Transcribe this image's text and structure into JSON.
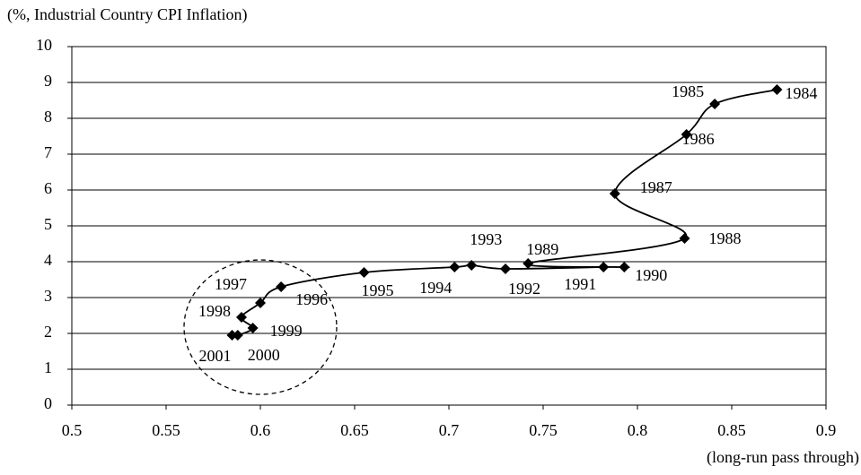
{
  "chart_data": {
    "type": "line",
    "y_label": "(%, Industrial Country CPI Inflation)",
    "x_label": "(long-run pass through)",
    "x": [
      0.874,
      0.841,
      0.826,
      0.788,
      0.825,
      0.742,
      0.793,
      0.782,
      0.73,
      0.712,
      0.703,
      0.655,
      0.611,
      0.6,
      0.59,
      0.596,
      0.588,
      0.585
    ],
    "values": [
      8.8,
      8.4,
      7.55,
      5.9,
      4.65,
      3.95,
      3.85,
      3.85,
      3.8,
      3.9,
      3.85,
      3.7,
      3.3,
      2.85,
      2.45,
      2.15,
      1.95,
      1.95
    ],
    "point_labels": [
      "1984",
      "1985",
      "1986",
      "1987",
      "1988",
      "1989",
      "1990",
      "1991",
      "1992",
      "1993",
      "1994",
      "1995",
      "1996",
      "1997",
      "1998",
      "1999",
      "2000",
      "2001"
    ],
    "color": "#000000",
    "xlim": [
      0.5,
      0.9
    ],
    "xticks": [
      0.5,
      0.55,
      0.6,
      0.65,
      0.7,
      0.75,
      0.8,
      0.85,
      0.9
    ],
    "ylim": [
      0,
      10
    ],
    "yticks": [
      0,
      1,
      2,
      3,
      4,
      5,
      6,
      7,
      8,
      9,
      10
    ],
    "grid": true
  }
}
